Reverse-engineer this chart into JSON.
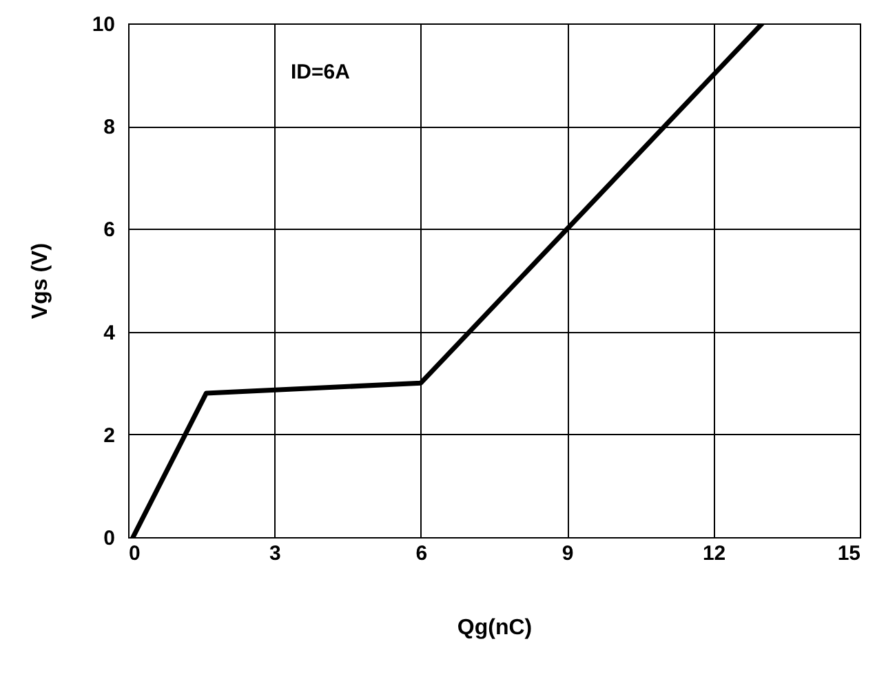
{
  "chart_data": {
    "type": "line",
    "xlabel": "Qg(nC)",
    "ylabel": "Vgs (V)",
    "x": [
      0.1,
      1.6,
      6,
      13
    ],
    "series": [
      {
        "color": "#000000",
        "values": [
          0,
          2.8,
          3.0,
          10
        ]
      }
    ],
    "xlim": [
      0,
      15
    ],
    "xticks": [
      0,
      3,
      6,
      9,
      12,
      15
    ],
    "ylim": [
      0,
      10
    ],
    "yticks": [
      0,
      2,
      4,
      6,
      8,
      10
    ],
    "grid": true,
    "line_style": "solid",
    "annotations": [
      "ID=6A"
    ]
  }
}
